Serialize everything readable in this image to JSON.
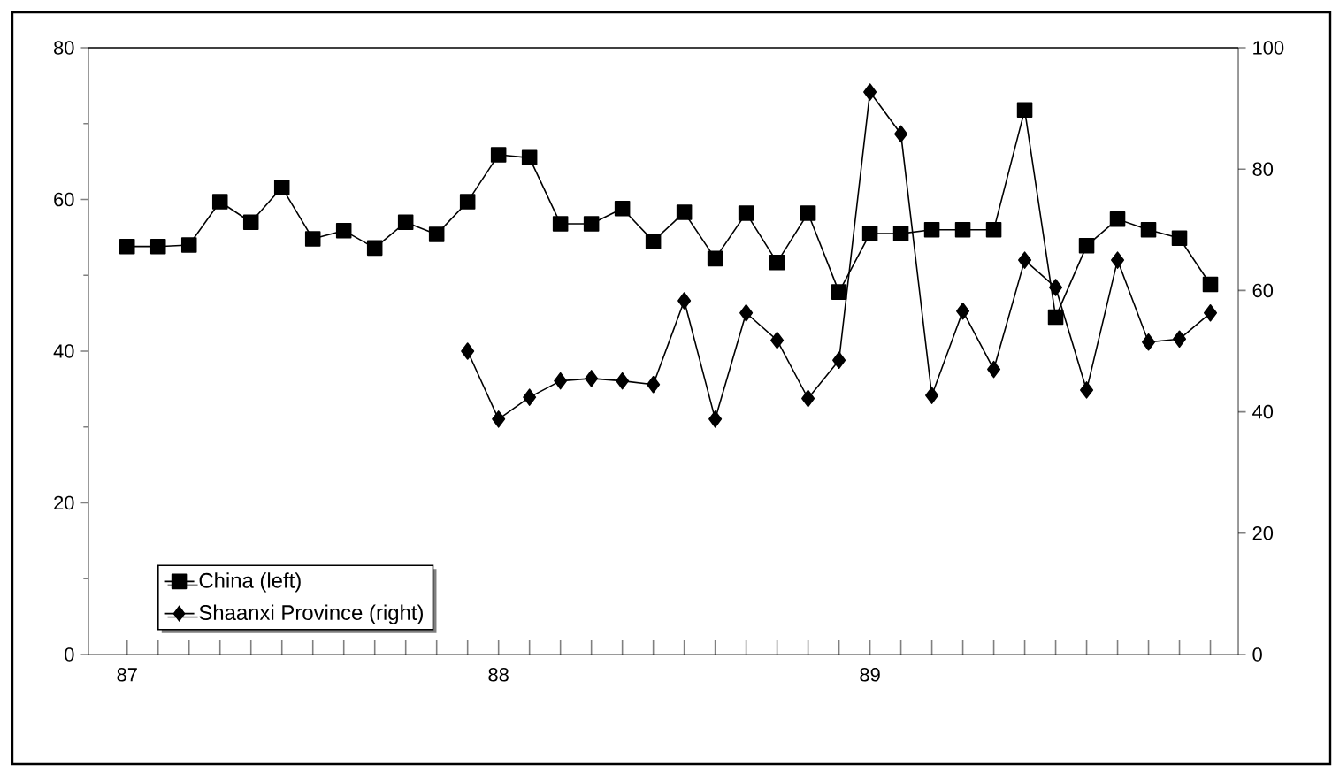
{
  "chart_data": {
    "type": "line",
    "categories": [
      "87",
      null,
      null,
      null,
      null,
      null,
      null,
      null,
      null,
      null,
      null,
      null,
      "88",
      null,
      null,
      null,
      null,
      null,
      null,
      null,
      null,
      null,
      null,
      null,
      "89",
      null,
      null,
      null,
      null,
      null,
      null,
      null,
      null,
      null,
      null,
      null
    ],
    "series": [
      {
        "name": "China (left)",
        "color": "#000000",
        "marker": "square",
        "values": [
          53.8,
          53.8,
          54,
          59.7,
          57,
          61.6,
          54.8,
          55.9,
          53.6,
          57,
          55.4,
          59.7,
          65.9,
          65.5,
          56.8,
          56.8,
          58.8,
          54.5,
          58.3,
          52.2,
          58.2,
          51.7,
          58.2,
          47.8,
          55.5,
          55.5,
          56,
          56,
          56,
          71.8,
          44.5,
          53.9,
          57.4,
          56,
          54.9,
          48.8
        ]
      },
      {
        "name": "Shaanxi Province (right)",
        "color": "#000000",
        "marker": "diamond",
        "axis": "y2",
        "values": [
          null,
          null,
          null,
          null,
          null,
          null,
          null,
          null,
          null,
          null,
          null,
          50,
          38.8,
          42.4,
          45.1,
          45.5,
          45.1,
          44.5,
          58.3,
          38.8,
          56.3,
          51.8,
          42.2,
          48.5,
          92.7,
          85.8,
          42.7,
          56.6,
          47,
          65,
          60.5,
          43.6,
          65,
          51.5,
          52,
          56.3
        ]
      }
    ],
    "ylim": [
      0,
      80
    ],
    "yticks": [
      0,
      20,
      40,
      60,
      80
    ],
    "y2lim": [
      0,
      100
    ],
    "y2ticks": [
      0,
      20,
      40,
      60,
      80,
      100
    ],
    "grid": false,
    "legend": "bottom left",
    "line_style": "solid"
  }
}
